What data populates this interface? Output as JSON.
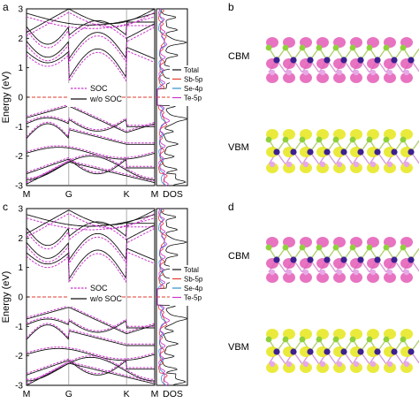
{
  "panel_letters": [
    "a",
    "b",
    "c",
    "d"
  ],
  "ylabel": "Energy (eV)",
  "yticks": [
    "3",
    "2",
    "1",
    "0",
    "-1",
    "-2",
    "-3"
  ],
  "kpoints": [
    "M",
    "G",
    "K",
    "M"
  ],
  "dos_label": "DOS",
  "band_legend": [
    "SOC",
    "w/o SOC"
  ],
  "dos_legend": [
    "Total",
    "Sb-5p",
    "Se-4p",
    "Te-5p"
  ],
  "state_labels": [
    "CBM",
    "VBM"
  ],
  "colors": {
    "soc": "#cc33cc",
    "wosoc": "#111111",
    "fermi": "#e23b2e",
    "total": "#111111",
    "sb": "#e23b2e",
    "se": "#2f8fd0",
    "te": "#cc33cc",
    "green_atom": "#8fd13a",
    "purple_atom": "#3d2090",
    "pink_lobe": "#e35bb6",
    "yellow_lobe": "#e6e61a"
  },
  "chart_data": [
    {
      "type": "line",
      "panel": "a",
      "ylim": [
        -3,
        3
      ],
      "x_ticks": [
        "M",
        "G",
        "K",
        "M"
      ],
      "ylabel": "Energy (eV)",
      "series": [
        {
          "name": "SOC"
        },
        {
          "name": "w/o SOC"
        }
      ],
      "reference_line": {
        "y": 0
      }
    },
    {
      "type": "line",
      "panel": "a",
      "xlabel": "DOS",
      "series": [
        {
          "name": "Total"
        },
        {
          "name": "Sb-5p"
        },
        {
          "name": "Se-4p"
        },
        {
          "name": "Te-5p"
        }
      ]
    },
    {
      "type": "line",
      "panel": "c",
      "ylim": [
        -3,
        3
      ],
      "x_ticks": [
        "M",
        "G",
        "K",
        "M"
      ],
      "ylabel": "Energy (eV)",
      "series": [
        {
          "name": "SOC"
        },
        {
          "name": "w/o SOC"
        }
      ],
      "reference_line": {
        "y": 0
      }
    },
    {
      "type": "line",
      "panel": "c",
      "xlabel": "DOS",
      "series": [
        {
          "name": "Total"
        },
        {
          "name": "Sb-5p"
        },
        {
          "name": "Se-4p"
        },
        {
          "name": "Te-5p"
        }
      ]
    }
  ]
}
